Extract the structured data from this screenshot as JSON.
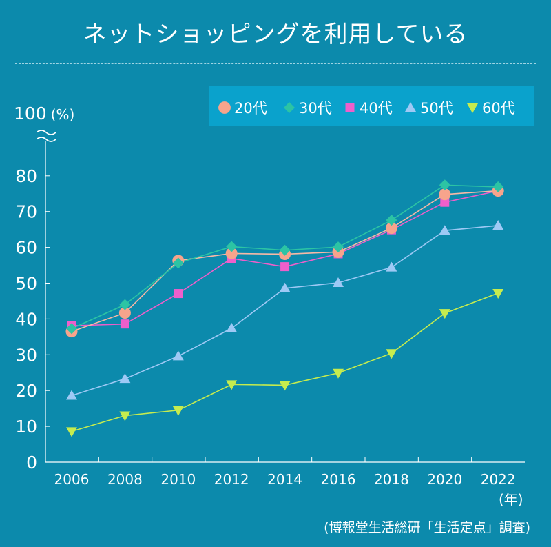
{
  "chart_data": {
    "type": "line",
    "title": "ネットショッピングを利用している",
    "xlabel": "(年)",
    "ylabel": "(%)",
    "x": [
      "2006",
      "2008",
      "2010",
      "2012",
      "2014",
      "2016",
      "2018",
      "2020",
      "2022"
    ],
    "y_ticks": [
      "0",
      "10",
      "20",
      "30",
      "40",
      "50",
      "60",
      "70",
      "80"
    ],
    "y_top_label": "100",
    "ylim": [
      0,
      85
    ],
    "axis_break": true,
    "grid": false,
    "legend_position": "top-right",
    "series": [
      {
        "name": "20代",
        "marker": "circle",
        "color": "#f7a48c",
        "line_color": "#f7b9a6",
        "values": [
          36.5,
          41.7,
          56.3,
          58.3,
          58.1,
          58.7,
          65.4,
          74.8,
          75.8
        ]
      },
      {
        "name": "30代",
        "marker": "diamond",
        "color": "#2cc4a4",
        "line_color": "#2cc4a4",
        "values": [
          37.3,
          44.0,
          55.6,
          60.2,
          59.2,
          60.1,
          67.6,
          77.4,
          76.9
        ]
      },
      {
        "name": "40代",
        "marker": "square",
        "color": "#ee5fcb",
        "line_color": "#ee5fcb",
        "values": [
          38.1,
          38.6,
          47.1,
          56.9,
          54.6,
          58.2,
          64.9,
          72.6,
          75.8
        ]
      },
      {
        "name": "50代",
        "marker": "triangle-up",
        "color": "#9ec9f5",
        "line_color": "#9ec9f5",
        "values": [
          18.6,
          23.3,
          29.6,
          37.4,
          48.6,
          50.1,
          54.4,
          64.7,
          66.1
        ]
      },
      {
        "name": "60代",
        "marker": "triangle-down",
        "color": "#c6ec4e",
        "line_color": "#c6ec4e",
        "values": [
          8.6,
          13.0,
          14.5,
          21.7,
          21.5,
          24.9,
          30.4,
          41.6,
          47.2
        ]
      }
    ]
  },
  "source": "(博報堂生活総研「生活定点」調査)"
}
